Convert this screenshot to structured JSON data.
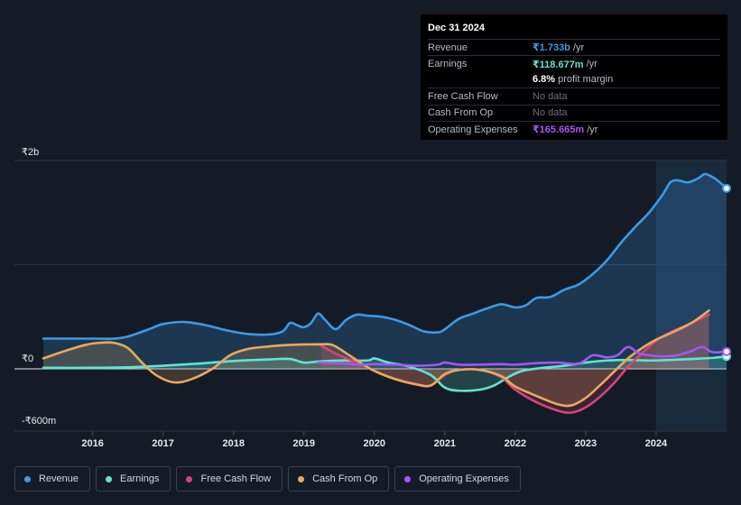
{
  "tooltip": {
    "date": "Dec 31 2024",
    "rows": [
      {
        "label": "Revenue",
        "value": "₹1.733b",
        "unit": "/yr",
        "color": "#3b9ae8"
      },
      {
        "label": "Earnings",
        "value": "₹118.677m",
        "unit": "/yr",
        "color": "#5ee6d0"
      },
      {
        "label": "",
        "value": "6.8%",
        "unit": "profit margin",
        "color": "#ffffff"
      },
      {
        "label": "Free Cash Flow",
        "value": "No data",
        "unit": "",
        "color": ""
      },
      {
        "label": "Cash From Op",
        "value": "No data",
        "unit": "",
        "color": ""
      },
      {
        "label": "Operating Expenses",
        "value": "₹165.665m",
        "unit": "/yr",
        "color": "#a855f7"
      }
    ]
  },
  "legend": [
    {
      "label": "Revenue",
      "color": "#3b9ae8"
    },
    {
      "label": "Earnings",
      "color": "#5ee6d0"
    },
    {
      "label": "Free Cash Flow",
      "color": "#d6457a"
    },
    {
      "label": "Cash From Op",
      "color": "#e9a95c"
    },
    {
      "label": "Operating Expenses",
      "color": "#a855f7"
    }
  ],
  "chart_data": {
    "type": "line",
    "title": "",
    "xlabel": "",
    "ylabel": "",
    "y_unit": "₹ millions",
    "ylim": [
      -600,
      2000
    ],
    "xlim": [
      2015.3,
      2025.0
    ],
    "highlight_from": 2024.0,
    "y_tick_labels": [
      {
        "value": 2000,
        "label": "₹2b"
      },
      {
        "value": 0,
        "label": "₹0"
      },
      {
        "value": -600,
        "label": "-₹600m"
      }
    ],
    "gridlines": [
      2000,
      1000,
      0
    ],
    "x_ticks": [
      2016,
      2017,
      2018,
      2019,
      2020,
      2021,
      2022,
      2023,
      2024
    ],
    "series": [
      {
        "name": "Revenue",
        "color": "#3b9ae8",
        "fill": true,
        "end_marker": true,
        "points": [
          [
            2015.3,
            290
          ],
          [
            2016.0,
            290
          ],
          [
            2016.3,
            290
          ],
          [
            2016.5,
            310
          ],
          [
            2016.8,
            380
          ],
          [
            2017.0,
            430
          ],
          [
            2017.3,
            450
          ],
          [
            2017.6,
            420
          ],
          [
            2017.9,
            370
          ],
          [
            2018.2,
            335
          ],
          [
            2018.5,
            330
          ],
          [
            2018.7,
            360
          ],
          [
            2018.8,
            440
          ],
          [
            2018.9,
            420
          ],
          [
            2019.0,
            400
          ],
          [
            2019.1,
            440
          ],
          [
            2019.2,
            530
          ],
          [
            2019.3,
            470
          ],
          [
            2019.45,
            380
          ],
          [
            2019.6,
            470
          ],
          [
            2019.75,
            520
          ],
          [
            2019.9,
            510
          ],
          [
            2020.1,
            500
          ],
          [
            2020.3,
            470
          ],
          [
            2020.5,
            420
          ],
          [
            2020.7,
            360
          ],
          [
            2020.9,
            350
          ],
          [
            2021.0,
            380
          ],
          [
            2021.2,
            480
          ],
          [
            2021.4,
            530
          ],
          [
            2021.6,
            580
          ],
          [
            2021.8,
            620
          ],
          [
            2022.0,
            590
          ],
          [
            2022.15,
            610
          ],
          [
            2022.3,
            680
          ],
          [
            2022.5,
            690
          ],
          [
            2022.7,
            760
          ],
          [
            2022.9,
            810
          ],
          [
            2023.1,
            910
          ],
          [
            2023.3,
            1040
          ],
          [
            2023.5,
            1210
          ],
          [
            2023.7,
            1360
          ],
          [
            2023.9,
            1500
          ],
          [
            2024.1,
            1680
          ],
          [
            2024.2,
            1790
          ],
          [
            2024.3,
            1810
          ],
          [
            2024.45,
            1790
          ],
          [
            2024.6,
            1830
          ],
          [
            2024.7,
            1870
          ],
          [
            2024.85,
            1820
          ],
          [
            2025.0,
            1733
          ]
        ]
      },
      {
        "name": "Earnings",
        "color": "#5ee6d0",
        "fill": true,
        "end_marker": true,
        "points": [
          [
            2015.3,
            10
          ],
          [
            2016.0,
            10
          ],
          [
            2016.5,
            15
          ],
          [
            2017.0,
            30
          ],
          [
            2017.5,
            50
          ],
          [
            2018.0,
            75
          ],
          [
            2018.5,
            90
          ],
          [
            2018.8,
            95
          ],
          [
            2019.0,
            60
          ],
          [
            2019.2,
            70
          ],
          [
            2019.5,
            80
          ],
          [
            2019.9,
            80
          ],
          [
            2020.0,
            100
          ],
          [
            2020.2,
            60
          ],
          [
            2020.5,
            20
          ],
          [
            2020.8,
            -60
          ],
          [
            2021.0,
            -180
          ],
          [
            2021.2,
            -210
          ],
          [
            2021.5,
            -200
          ],
          [
            2021.7,
            -160
          ],
          [
            2021.9,
            -80
          ],
          [
            2022.1,
            -20
          ],
          [
            2022.4,
            10
          ],
          [
            2022.7,
            30
          ],
          [
            2023.0,
            60
          ],
          [
            2023.3,
            80
          ],
          [
            2023.6,
            85
          ],
          [
            2023.9,
            80
          ],
          [
            2024.2,
            85
          ],
          [
            2024.5,
            95
          ],
          [
            2024.8,
            105
          ],
          [
            2025.0,
            119
          ]
        ]
      },
      {
        "name": "Free Cash Flow",
        "color": "#d6457a",
        "fill": true,
        "end_marker": false,
        "points": [
          [
            2019.25,
            220
          ],
          [
            2019.5,
            130
          ],
          [
            2019.8,
            50
          ],
          [
            2020.0,
            -20
          ],
          [
            2020.3,
            -100
          ],
          [
            2020.6,
            -150
          ],
          [
            2020.8,
            -160
          ],
          [
            2021.0,
            -60
          ],
          [
            2021.2,
            -10
          ],
          [
            2021.5,
            -10
          ],
          [
            2021.8,
            -80
          ],
          [
            2022.0,
            -200
          ],
          [
            2022.3,
            -320
          ],
          [
            2022.6,
            -400
          ],
          [
            2022.8,
            -420
          ],
          [
            2023.0,
            -370
          ],
          [
            2023.2,
            -270
          ],
          [
            2023.4,
            -140
          ],
          [
            2023.6,
            20
          ],
          [
            2023.8,
            150
          ],
          [
            2024.0,
            270
          ],
          [
            2024.2,
            350
          ],
          [
            2024.5,
            440
          ],
          [
            2024.75,
            520
          ]
        ]
      },
      {
        "name": "Cash From Op",
        "color": "#e9a95c",
        "fill": true,
        "end_marker": false,
        "points": [
          [
            2015.3,
            100
          ],
          [
            2015.6,
            170
          ],
          [
            2015.9,
            230
          ],
          [
            2016.1,
            250
          ],
          [
            2016.3,
            250
          ],
          [
            2016.5,
            200
          ],
          [
            2016.7,
            60
          ],
          [
            2016.9,
            -60
          ],
          [
            2017.15,
            -130
          ],
          [
            2017.4,
            -100
          ],
          [
            2017.7,
            0
          ],
          [
            2017.95,
            130
          ],
          [
            2018.2,
            190
          ],
          [
            2018.5,
            215
          ],
          [
            2018.8,
            230
          ],
          [
            2019.2,
            235
          ],
          [
            2019.4,
            230
          ],
          [
            2019.6,
            150
          ],
          [
            2019.8,
            60
          ],
          [
            2020.0,
            -20
          ],
          [
            2020.3,
            -100
          ],
          [
            2020.6,
            -150
          ],
          [
            2020.8,
            -160
          ],
          [
            2021.0,
            -50
          ],
          [
            2021.2,
            -10
          ],
          [
            2021.5,
            -10
          ],
          [
            2021.8,
            -70
          ],
          [
            2022.0,
            -170
          ],
          [
            2022.3,
            -260
          ],
          [
            2022.6,
            -340
          ],
          [
            2022.8,
            -350
          ],
          [
            2023.0,
            -280
          ],
          [
            2023.2,
            -160
          ],
          [
            2023.4,
            -30
          ],
          [
            2023.6,
            100
          ],
          [
            2023.8,
            200
          ],
          [
            2024.0,
            280
          ],
          [
            2024.2,
            340
          ],
          [
            2024.5,
            440
          ],
          [
            2024.75,
            560
          ]
        ]
      },
      {
        "name": "Operating Expenses",
        "color": "#a855f7",
        "fill": false,
        "end_marker": true,
        "points": [
          [
            2019.2,
            60
          ],
          [
            2019.5,
            55
          ],
          [
            2019.8,
            40
          ],
          [
            2020.0,
            45
          ],
          [
            2020.3,
            40
          ],
          [
            2020.6,
            30
          ],
          [
            2020.9,
            40
          ],
          [
            2021.0,
            60
          ],
          [
            2021.2,
            40
          ],
          [
            2021.5,
            40
          ],
          [
            2021.8,
            45
          ],
          [
            2022.0,
            40
          ],
          [
            2022.3,
            55
          ],
          [
            2022.6,
            60
          ],
          [
            2022.9,
            50
          ],
          [
            2023.1,
            130
          ],
          [
            2023.3,
            110
          ],
          [
            2023.45,
            130
          ],
          [
            2023.6,
            210
          ],
          [
            2023.75,
            150
          ],
          [
            2023.9,
            130
          ],
          [
            2024.1,
            120
          ],
          [
            2024.3,
            130
          ],
          [
            2024.5,
            170
          ],
          [
            2024.65,
            210
          ],
          [
            2024.8,
            160
          ],
          [
            2025.0,
            166
          ]
        ]
      }
    ]
  }
}
